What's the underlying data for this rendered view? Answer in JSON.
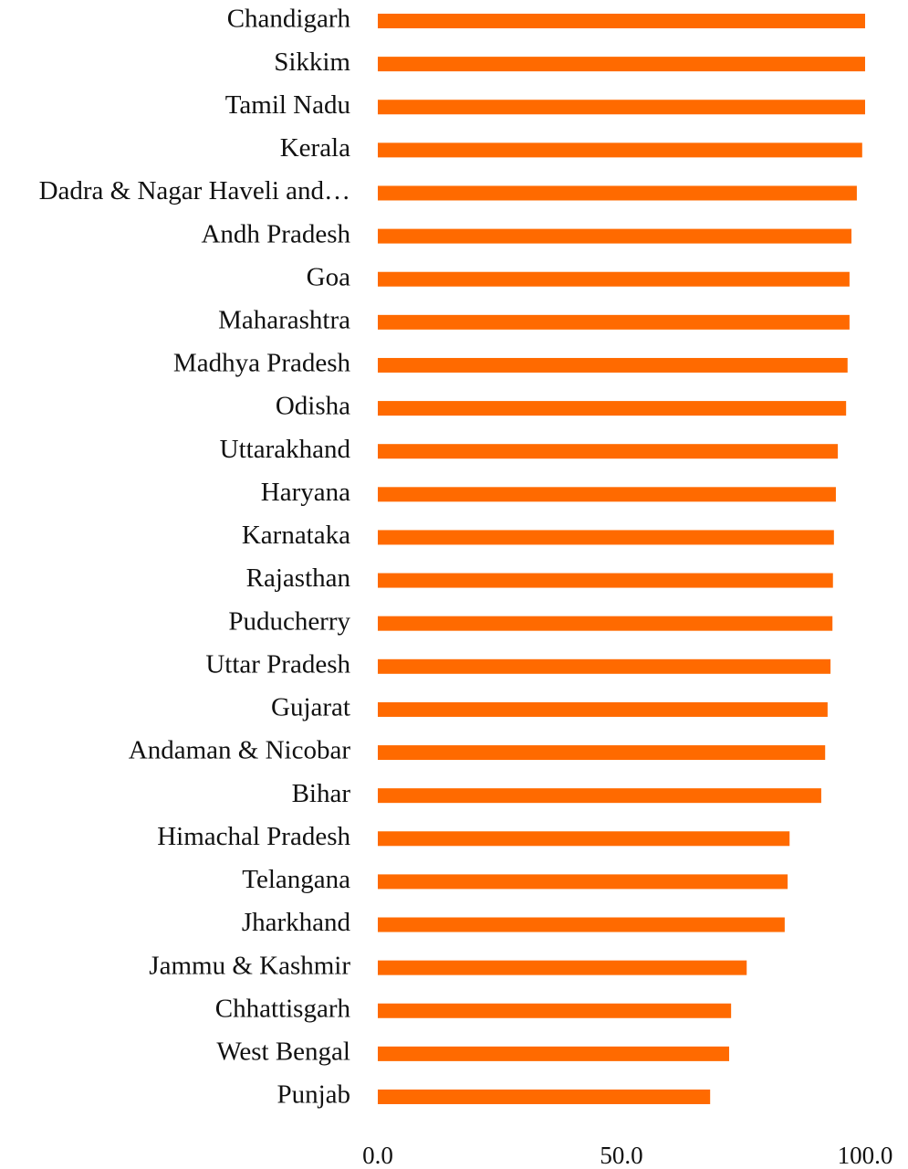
{
  "chart_data": {
    "type": "barh",
    "categories": [
      "Chandigarh",
      "Sikkim",
      "Tamil Nadu",
      "Kerala",
      "Dadra & Nagar Haveli and…",
      "Andh Pradesh",
      "Goa",
      "Maharashtra",
      "Madhya Pradesh",
      "Odisha",
      "Uttarakhand",
      "Haryana",
      "Karnataka",
      "Rajasthan",
      "Puducherry",
      "Uttar Pradesh",
      "Gujarat",
      "Andaman & Nicobar",
      "Bihar",
      "Himachal Pradesh",
      "Telangana",
      "Jharkhand",
      "Jammu & Kashmir",
      "Chhattisgarh",
      "West Bengal",
      "Punjab"
    ],
    "values": [
      100,
      100,
      100,
      99.4,
      98.3,
      97.2,
      96.8,
      96.8,
      96.4,
      96.1,
      94.4,
      94.0,
      93.6,
      93.4,
      93.3,
      92.9,
      92.3,
      91.8,
      91.0,
      84.5,
      84.1,
      83.5,
      75.7,
      72.5,
      72.1,
      68.2
    ],
    "color": "#ff6a00",
    "xlim": [
      0,
      100
    ],
    "xticks": [
      {
        "value": 0,
        "label": "0.0"
      },
      {
        "value": 50,
        "label": "50.0"
      },
      {
        "value": 100,
        "label": "100.0"
      }
    ],
    "grid": false
  }
}
